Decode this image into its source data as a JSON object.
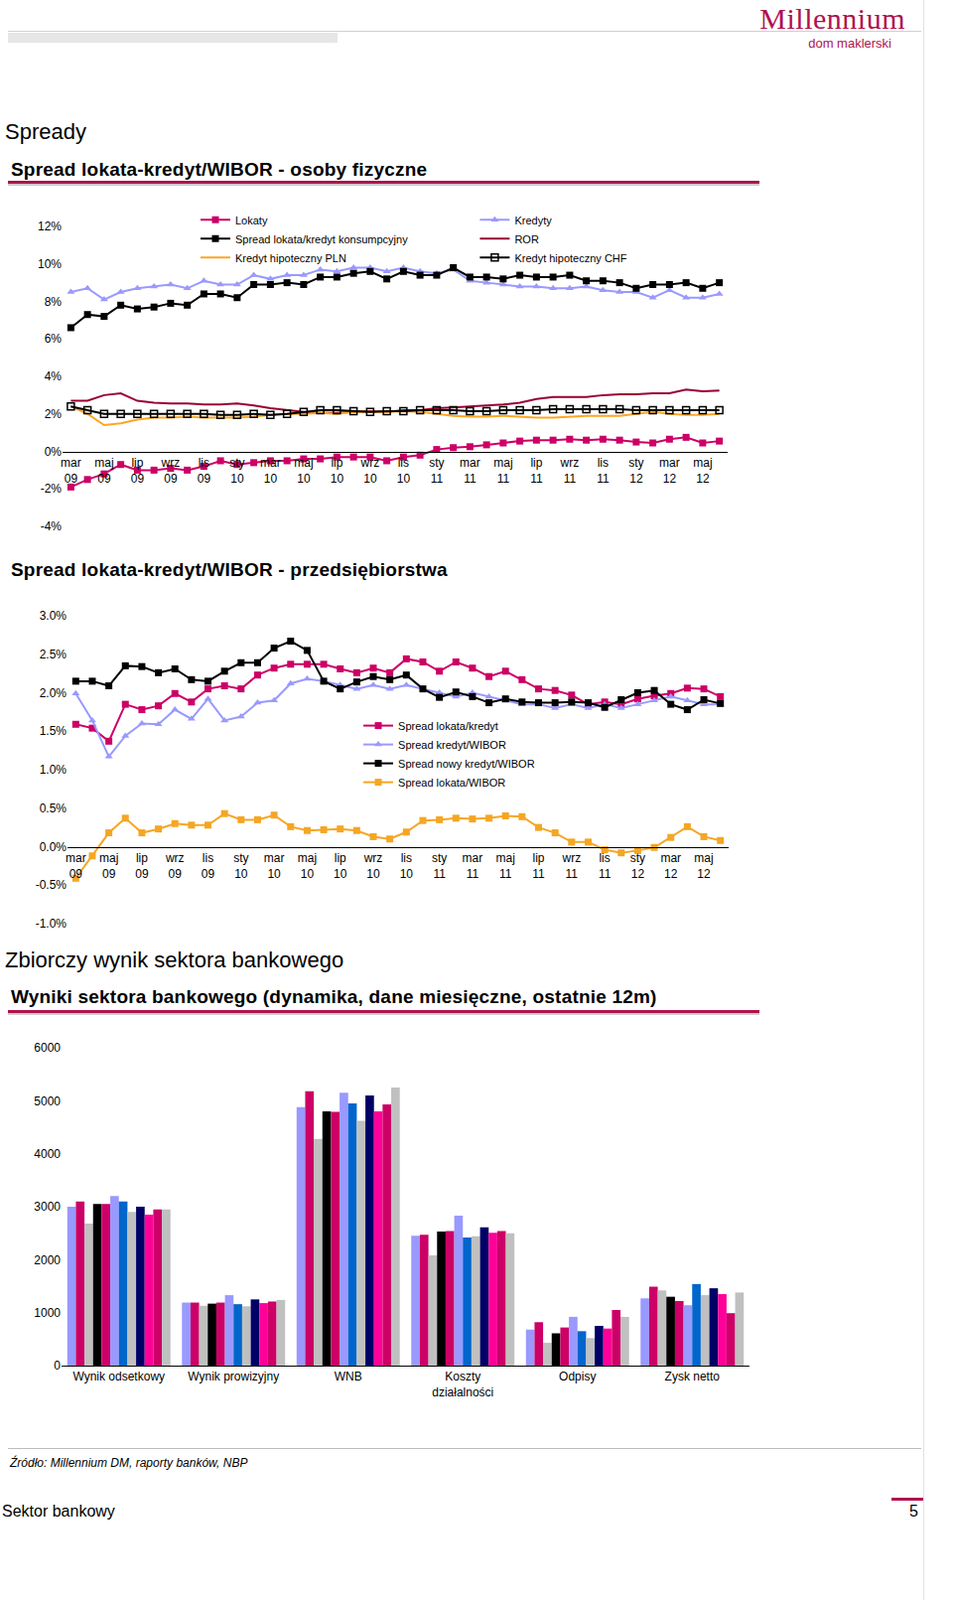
{
  "header": {
    "logo": "Millennium",
    "logo_subtitle": "dom maklerski"
  },
  "sections": [
    "Spready",
    "Zbiorczy wynik sektora bankowego"
  ],
  "source": "Źródło: Millennium DM, raporty banków, NBP",
  "footer": {
    "text": "Sektor bankowy",
    "page": 5
  },
  "chart_data": [
    {
      "type": "line",
      "title": "Spread lokata-kredyt/WIBOR - osoby fizyczne",
      "categories": [
        "mar 09",
        null,
        "maj 09",
        null,
        "lip 09",
        null,
        "wrz 09",
        null,
        "lis 09",
        null,
        "sty 10",
        null,
        "mar 10",
        null,
        "maj 10",
        null,
        "lip 10",
        null,
        "wrz 10",
        null,
        "lis 10",
        null,
        "sty 11",
        null,
        "mar 11",
        null,
        "maj 11",
        null,
        "lip 11",
        null,
        "wrz 11",
        null,
        "lis 11",
        null,
        "sty 12",
        null,
        "mar 12",
        null,
        "maj 12",
        null
      ],
      "series": [
        {
          "name": "Lokaty",
          "color": "#cc0066",
          "marker": "square",
          "line_style": "solid",
          "values": [
            -1.9,
            -1.5,
            -1.2,
            -0.7,
            -1.0,
            -1.0,
            -0.9,
            -1.0,
            -0.8,
            -0.5,
            -0.7,
            -0.6,
            -0.5,
            -0.5,
            -0.4,
            -0.4,
            -0.3,
            -0.3,
            -0.3,
            -0.5,
            -0.3,
            -0.2,
            0.1,
            0.2,
            0.25,
            0.35,
            0.45,
            0.55,
            0.6,
            0.6,
            0.65,
            0.6,
            0.65,
            0.6,
            0.5,
            0.45,
            0.65,
            0.75,
            0.45,
            0.55
          ]
        },
        {
          "name": "Kredyty",
          "color": "#9999ff",
          "marker": "triangle-up",
          "line_style": "solid",
          "values": [
            8.5,
            8.7,
            8.1,
            8.5,
            8.7,
            8.8,
            8.9,
            8.7,
            9.1,
            8.9,
            8.9,
            9.4,
            9.2,
            9.4,
            9.4,
            9.7,
            9.6,
            9.8,
            9.8,
            9.6,
            9.8,
            9.6,
            9.5,
            9.7,
            9.1,
            9.0,
            8.9,
            8.8,
            8.8,
            8.7,
            8.7,
            8.8,
            8.6,
            8.5,
            8.5,
            8.2,
            8.6,
            8.2,
            8.2,
            8.4
          ]
        },
        {
          "name": "Spread lokata/kredyt konsumpcyjny",
          "color": "#000000",
          "marker": "square",
          "line_style": "solid",
          "values": [
            6.6,
            7.3,
            7.2,
            7.8,
            7.6,
            7.7,
            7.9,
            7.8,
            8.4,
            8.4,
            8.2,
            8.9,
            8.9,
            9.0,
            8.9,
            9.3,
            9.3,
            9.5,
            9.6,
            9.2,
            9.6,
            9.4,
            9.4,
            9.8,
            9.3,
            9.3,
            9.2,
            9.4,
            9.3,
            9.3,
            9.4,
            9.1,
            9.1,
            9.0,
            8.7,
            8.9,
            8.9,
            9.0,
            8.7,
            9.0
          ]
        },
        {
          "name": "ROR",
          "color": "#990033",
          "marker": "none",
          "line_style": "solid",
          "values": [
            2.7,
            2.7,
            3.0,
            3.1,
            2.7,
            2.6,
            2.55,
            2.55,
            2.5,
            2.5,
            2.55,
            2.45,
            2.3,
            2.2,
            2.1,
            2.05,
            2.05,
            2.1,
            2.15,
            2.1,
            2.2,
            2.2,
            2.3,
            2.35,
            2.4,
            2.45,
            2.5,
            2.6,
            2.8,
            2.9,
            2.9,
            2.9,
            3.0,
            3.05,
            3.05,
            3.1,
            3.1,
            3.3,
            3.2,
            3.25
          ]
        },
        {
          "name": "Kredyt hipoteczny PLN",
          "color": "#ffa520",
          "marker": "none",
          "line_style": "solid",
          "values": [
            2.4,
            2.0,
            1.4,
            1.5,
            1.7,
            1.8,
            1.8,
            1.85,
            1.8,
            1.8,
            1.8,
            1.85,
            1.95,
            2.0,
            2.0,
            2.05,
            2.0,
            2.1,
            2.1,
            2.1,
            2.15,
            2.1,
            2.0,
            1.9,
            1.85,
            1.85,
            1.9,
            1.85,
            1.8,
            1.8,
            1.85,
            1.9,
            1.9,
            1.9,
            2.0,
            2.1,
            2.0,
            1.95,
            1.95,
            2.0
          ]
        },
        {
          "name": "Kredyt hipoteczny CHF",
          "color": "#000000",
          "marker": "square-open",
          "line_style": "solid",
          "values": [
            2.4,
            2.2,
            2.0,
            2.0,
            2.0,
            2.0,
            2.0,
            2.0,
            2.0,
            1.95,
            1.95,
            2.0,
            1.95,
            2.0,
            2.1,
            2.2,
            2.2,
            2.15,
            2.1,
            2.15,
            2.15,
            2.2,
            2.2,
            2.2,
            2.15,
            2.15,
            2.2,
            2.2,
            2.2,
            2.25,
            2.25,
            2.25,
            2.25,
            2.25,
            2.2,
            2.2,
            2.2,
            2.2,
            2.2,
            2.2
          ]
        }
      ],
      "ylim": [
        -4,
        12
      ],
      "yticks": [
        {
          "value": -4,
          "label": "-4%"
        },
        {
          "value": -2,
          "label": "-2%"
        },
        {
          "value": 0,
          "label": "0%"
        },
        {
          "value": 2,
          "label": "2%"
        },
        {
          "value": 4,
          "label": "4%"
        },
        {
          "value": 6,
          "label": "6%"
        },
        {
          "value": 8,
          "label": "8%"
        },
        {
          "value": 10,
          "label": "10%"
        },
        {
          "value": 12,
          "label": "12%"
        }
      ],
      "grid": false,
      "legend": "top"
    },
    {
      "type": "line",
      "title": "Spread lokata-kredyt/WIBOR - przedsiębiorstwa",
      "categories": [
        "mar 09",
        null,
        "maj 09",
        null,
        "lip 09",
        null,
        "wrz 09",
        null,
        "lis 09",
        null,
        "sty 10",
        null,
        "mar 10",
        null,
        "maj 10",
        null,
        "lip 10",
        null,
        "wrz 10",
        null,
        "lis 10",
        null,
        "sty 11",
        null,
        "mar 11",
        null,
        "maj 11",
        null,
        "lip 11",
        null,
        "wrz 11",
        null,
        "lis 11",
        null,
        "sty 12",
        null,
        "mar 12",
        null,
        "maj 12",
        null
      ],
      "series": [
        {
          "name": "Spread lokata/kredyt",
          "color": "#cc0066",
          "marker": "square",
          "line_style": "solid",
          "values": [
            1.59,
            1.54,
            1.37,
            1.85,
            1.78,
            1.83,
            1.99,
            1.88,
            2.05,
            2.09,
            2.05,
            2.23,
            2.32,
            2.37,
            2.37,
            2.37,
            2.31,
            2.26,
            2.32,
            2.26,
            2.44,
            2.4,
            2.28,
            2.4,
            2.32,
            2.21,
            2.28,
            2.17,
            2.05,
            2.03,
            1.97,
            1.85,
            1.88,
            1.85,
            1.92,
            1.96,
            1.99,
            2.06,
            2.05,
            1.95
          ]
        },
        {
          "name": "Spread kredyt/WIBOR",
          "color": "#9999ff",
          "marker": "triangle-up",
          "line_style": "solid",
          "values": [
            1.99,
            1.64,
            1.17,
            1.44,
            1.6,
            1.59,
            1.78,
            1.66,
            1.92,
            1.64,
            1.69,
            1.87,
            1.9,
            2.12,
            2.18,
            2.15,
            2.1,
            2.05,
            2.1,
            2.05,
            2.1,
            2.05,
            2.0,
            1.95,
            2.0,
            1.95,
            1.9,
            1.85,
            1.85,
            1.8,
            1.85,
            1.8,
            1.85,
            1.8,
            1.85,
            1.9,
            1.95,
            1.9,
            1.85,
            1.85
          ]
        },
        {
          "name": "Spread nowy kredyt/WIBOR",
          "color": "#000000",
          "marker": "square",
          "line_style": "solid",
          "values": [
            2.15,
            2.15,
            2.09,
            2.35,
            2.34,
            2.26,
            2.31,
            2.17,
            2.15,
            2.28,
            2.39,
            2.39,
            2.58,
            2.67,
            2.55,
            2.15,
            2.05,
            2.14,
            2.21,
            2.17,
            2.23,
            2.05,
            1.94,
            2.01,
            1.95,
            1.87,
            1.92,
            1.88,
            1.87,
            1.87,
            1.88,
            1.87,
            1.81,
            1.91,
            2.0,
            2.03,
            1.85,
            1.78,
            1.91,
            1.86
          ]
        },
        {
          "name": "Spread lokata/WIBOR",
          "color": "#f5a623",
          "marker": "square",
          "line_style": "solid",
          "values": [
            -0.41,
            -0.12,
            0.18,
            0.37,
            0.18,
            0.23,
            0.3,
            0.28,
            0.28,
            0.43,
            0.35,
            0.35,
            0.41,
            0.26,
            0.21,
            0.22,
            0.23,
            0.21,
            0.13,
            0.1,
            0.19,
            0.34,
            0.35,
            0.37,
            0.36,
            0.37,
            0.4,
            0.39,
            0.25,
            0.18,
            0.06,
            0.06,
            -0.04,
            -0.08,
            -0.05,
            -0.01,
            0.12,
            0.26,
            0.13,
            0.08
          ]
        }
      ],
      "ylim": [
        -1,
        3
      ],
      "yticks": [
        {
          "value": -1,
          "label": "-1.0%"
        },
        {
          "value": -0.5,
          "label": "-0.5%"
        },
        {
          "value": 0,
          "label": "0.0%"
        },
        {
          "value": 0.5,
          "label": "0.5%"
        },
        {
          "value": 1,
          "label": "1.0%"
        },
        {
          "value": 1.5,
          "label": "1.5%"
        },
        {
          "value": 2,
          "label": "2.0%"
        },
        {
          "value": 2.5,
          "label": "2.5%"
        },
        {
          "value": 3,
          "label": "3.0%"
        }
      ],
      "grid": false,
      "legend": "center"
    },
    {
      "type": "bar",
      "title": "Wyniki sektora bankowego (dynamika, dane miesięczne, ostatnie 12m)",
      "categories": [
        "Wynik odsetkowy",
        "Wynik prowizyjny",
        "WNB",
        "Koszty działalności",
        "Odpisy",
        "Zysk netto"
      ],
      "series": [
        {
          "color": "#9999ff",
          "values": [
            3000,
            1190,
            4880,
            2450,
            680,
            1270
          ]
        },
        {
          "color": "#cc0066",
          "values": [
            3100,
            1190,
            5180,
            2470,
            820,
            1490
          ]
        },
        {
          "color": "#c0c0c0",
          "values": [
            2680,
            1130,
            4280,
            2080,
            430,
            1420
          ]
        },
        {
          "color": "#000000",
          "values": [
            3050,
            1170,
            4800,
            2530,
            610,
            1300
          ]
        },
        {
          "color": "#cc0066",
          "values": [
            3050,
            1190,
            4790,
            2540,
            720,
            1220
          ]
        },
        {
          "color": "#9999ff",
          "values": [
            3200,
            1330,
            5150,
            2830,
            920,
            1140
          ]
        },
        {
          "color": "#0066cc",
          "values": [
            3100,
            1160,
            4950,
            2420,
            650,
            1540
          ]
        },
        {
          "color": "#c0c0c0",
          "values": [
            2900,
            1120,
            4620,
            2440,
            520,
            1330
          ]
        },
        {
          "color": "#000066",
          "values": [
            3000,
            1250,
            5100,
            2610,
            750,
            1460
          ]
        },
        {
          "color": "#ff0099",
          "values": [
            2850,
            1180,
            4800,
            2510,
            700,
            1350
          ]
        },
        {
          "color": "#cc0066",
          "values": [
            2950,
            1210,
            4930,
            2540,
            1050,
            990
          ]
        },
        {
          "color": "#c0c0c0",
          "values": [
            2950,
            1240,
            5250,
            2500,
            920,
            1380
          ]
        }
      ],
      "ylim": [
        0,
        6000
      ],
      "yticks": [
        0,
        1000,
        2000,
        3000,
        4000,
        5000,
        6000
      ],
      "grid": false
    }
  ]
}
